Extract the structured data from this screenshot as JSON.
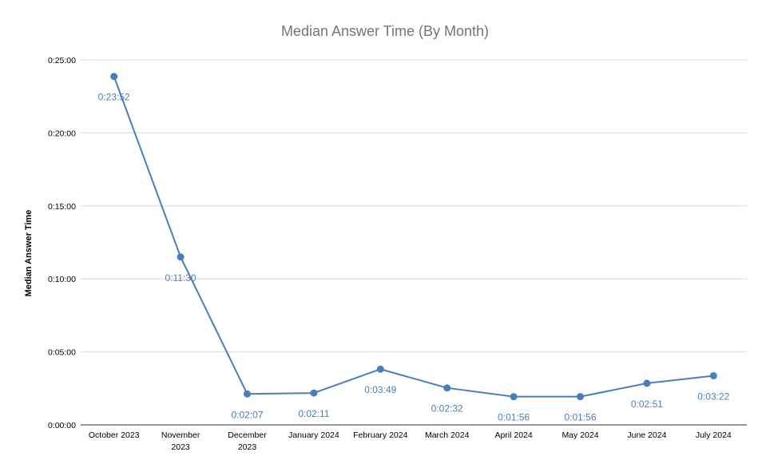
{
  "chart_data": {
    "type": "line",
    "title": "Median Answer Time (By Month)",
    "xlabel": "",
    "ylabel": "Median Answer Time",
    "categories": [
      "October 2023",
      "November 2023",
      "December 2023",
      "January 2024",
      "February 2024",
      "March 2024",
      "April 2024",
      "May 2024",
      "June 2024",
      "July 2024"
    ],
    "category_lines": [
      [
        "October 2023"
      ],
      [
        "November",
        "2023"
      ],
      [
        "December",
        "2023"
      ],
      [
        "January 2024"
      ],
      [
        "February 2024"
      ],
      [
        "March 2024"
      ],
      [
        "April 2024"
      ],
      [
        "May 2024"
      ],
      [
        "June 2024"
      ],
      [
        "July 2024"
      ]
    ],
    "series": [
      {
        "values": [
          "0:23:52",
          "0:11:30",
          "0:02:07",
          "0:02:11",
          "0:03:49",
          "0:02:32",
          "0:01:56",
          "0:01:56",
          "0:02:51",
          "0:03:22"
        ],
        "data_labels": [
          "0:23:52",
          "0:11:30",
          "0:02:07",
          "0:02:11",
          "0:03:49",
          "0:02:32",
          "0:01:56",
          "0:01:56",
          "0:02:51",
          "0:03:22"
        ],
        "color": "#4a7ebb"
      }
    ],
    "ylim": [
      "0:00:00",
      "0:25:00"
    ],
    "yticks": [
      "0:00:00",
      "0:05:00",
      "0:10:00",
      "0:15:00",
      "0:20:00",
      "0:25:00"
    ],
    "grid": true,
    "legend": "none",
    "colors": {
      "line": "#4a7ebb",
      "grid": "#d9d9d9",
      "title": "#757575"
    }
  }
}
